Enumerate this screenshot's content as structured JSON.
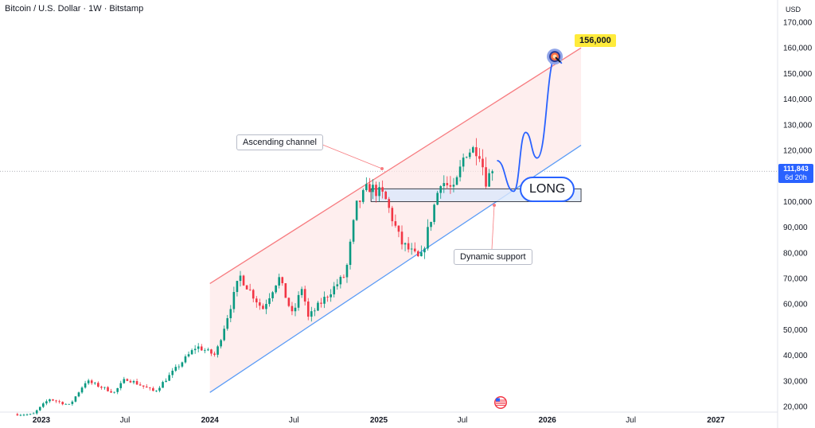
{
  "header": {
    "title": "Bitcoin / U.S. Dollar · 1W · Bitstamp"
  },
  "axis": {
    "currency": "USD"
  },
  "price_tag": {
    "price": "111,843",
    "countdown": "6d 20h"
  },
  "annotations": {
    "ascending_channel": "Ascending channel",
    "dynamic_support": "Dynamic support",
    "target": "156,000",
    "long": "LONG"
  },
  "colors": {
    "up": "#089981",
    "down": "#f23645",
    "channel_upper": "#f77c80",
    "channel_lower": "#5b9cf6",
    "channel_fill": "#fde7e7",
    "projection": "#2962ff",
    "zone_fill": "#dbe7fb",
    "zone_border": "#131722",
    "target_bg": "#ffeb3b"
  },
  "icons": {
    "target": "target-icon",
    "event": "us-flag-icon"
  },
  "chart_data": {
    "type": "candlestick",
    "title": "Bitcoin / U.S. Dollar · 1W · Bitstamp",
    "xlabel": "",
    "ylabel": "",
    "ylim": [
      20000,
      170000
    ],
    "y_ticks": [
      "20,000",
      "30,000",
      "40,000",
      "50,000",
      "60,000",
      "70,000",
      "80,000",
      "90,000",
      "100,000",
      "110,000",
      "120,000",
      "130,000",
      "140,000",
      "150,000",
      "160,000",
      "170,000"
    ],
    "y_tick_values": [
      20000,
      30000,
      40000,
      50000,
      60000,
      70000,
      80000,
      90000,
      100000,
      110000,
      120000,
      130000,
      140000,
      150000,
      160000,
      170000
    ],
    "x_ticks": [
      {
        "label": "2023",
        "date": "2023-01-01",
        "major": true
      },
      {
        "label": "Jul",
        "date": "2023-07-01",
        "major": false
      },
      {
        "label": "2024",
        "date": "2024-01-01",
        "major": true
      },
      {
        "label": "Jul",
        "date": "2024-07-01",
        "major": false
      },
      {
        "label": "2025",
        "date": "2025-01-01",
        "major": true
      },
      {
        "label": "Jul",
        "date": "2025-07-01",
        "major": false
      },
      {
        "label": "2026",
        "date": "2026-01-01",
        "major": true
      },
      {
        "label": "Jul",
        "date": "2026-07-01",
        "major": false
      },
      {
        "label": "2027",
        "date": "2027-01-01",
        "major": true
      }
    ],
    "last_price": 111843,
    "anchors": [
      {
        "date": "2022-11-10",
        "price": 17000
      },
      {
        "date": "2022-12-20",
        "price": 16800
      },
      {
        "date": "2023-01-25",
        "price": 23000
      },
      {
        "date": "2023-03-10",
        "price": 20500
      },
      {
        "date": "2023-04-15",
        "price": 30000
      },
      {
        "date": "2023-06-15",
        "price": 25500
      },
      {
        "date": "2023-07-10",
        "price": 31000
      },
      {
        "date": "2023-09-10",
        "price": 25800
      },
      {
        "date": "2023-10-25",
        "price": 34500
      },
      {
        "date": "2023-12-10",
        "price": 43500
      },
      {
        "date": "2024-01-20",
        "price": 40000
      },
      {
        "date": "2024-03-13",
        "price": 71000
      },
      {
        "date": "2024-05-01",
        "price": 58000
      },
      {
        "date": "2024-06-05",
        "price": 70500
      },
      {
        "date": "2024-07-05",
        "price": 55500
      },
      {
        "date": "2024-07-28",
        "price": 68000
      },
      {
        "date": "2024-08-05",
        "price": 54000
      },
      {
        "date": "2024-09-28",
        "price": 65500
      },
      {
        "date": "2024-10-28",
        "price": 71500
      },
      {
        "date": "2024-11-20",
        "price": 98000
      },
      {
        "date": "2024-12-17",
        "price": 106000
      },
      {
        "date": "2025-01-20",
        "price": 102000
      },
      {
        "date": "2025-02-25",
        "price": 84000
      },
      {
        "date": "2025-04-08",
        "price": 77000
      },
      {
        "date": "2025-05-22",
        "price": 108500
      },
      {
        "date": "2025-06-20",
        "price": 104000
      },
      {
        "date": "2025-07-14",
        "price": 119500
      },
      {
        "date": "2025-08-12",
        "price": 121000
      },
      {
        "date": "2025-08-28",
        "price": 108500
      },
      {
        "date": "2025-09-10",
        "price": 111843
      }
    ],
    "channel": {
      "upper": [
        {
          "date": "2024-01-01",
          "price": 68000
        },
        {
          "date": "2026-03-15",
          "price": 160000
        }
      ],
      "lower": [
        {
          "date": "2024-01-01",
          "price": 25500
        },
        {
          "date": "2026-03-15",
          "price": 122000
        }
      ]
    },
    "target_price": 156000,
    "long_zone": {
      "date_start": "2024-12-15",
      "date_end": "2026-03-15",
      "price_low": 100000,
      "price_high": 105000
    },
    "projection": [
      {
        "date": "2025-09-14",
        "price": 116000
      },
      {
        "date": "2025-10-20",
        "price": 104000
      },
      {
        "date": "2025-11-15",
        "price": 127000
      },
      {
        "date": "2025-12-10",
        "price": 117000
      },
      {
        "date": "2026-01-20",
        "price": 157000
      }
    ]
  }
}
